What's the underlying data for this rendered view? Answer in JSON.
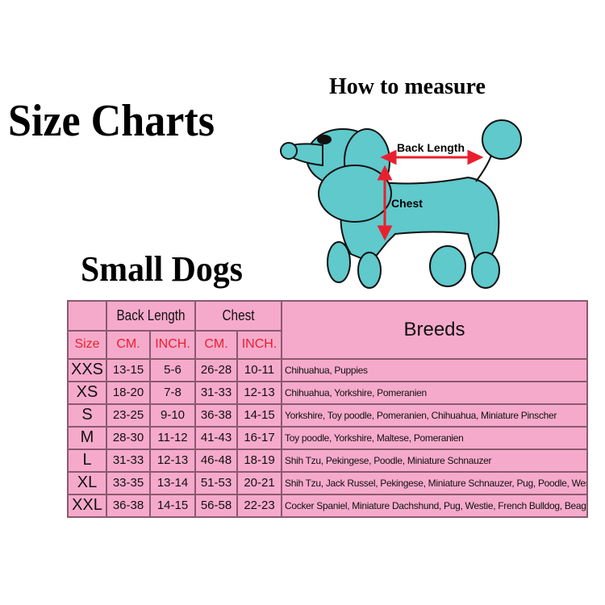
{
  "title": "Size Charts",
  "subtitle": "Small Dogs",
  "measure": {
    "title": "How to measure",
    "back_length": "Back Length",
    "chest": "Chest"
  },
  "colors": {
    "table_bg": "#f6aacb",
    "unit_text": "#e8202e",
    "dog": "#5fc9cc",
    "arrow": "#e8202e"
  },
  "table": {
    "group_back": "Back Length",
    "group_chest": "Chest",
    "breeds": "Breeds",
    "size": "Size",
    "cm": "CM.",
    "inch": "INCH.",
    "rows": [
      {
        "size": "XXS",
        "back_cm": "13-15",
        "back_in": "5-6",
        "chest_cm": "26-28",
        "chest_in": "10-11",
        "breeds": "Chihuahua, Puppies"
      },
      {
        "size": "XS",
        "back_cm": "18-20",
        "back_in": "7-8",
        "chest_cm": "31-33",
        "chest_in": "12-13",
        "breeds": "Chihuahua, Yorkshire, Pomeranien"
      },
      {
        "size": "S",
        "back_cm": "23-25",
        "back_in": "9-10",
        "chest_cm": "36-38",
        "chest_in": "14-15",
        "breeds": "Yorkshire, Toy poodle, Pomeranien, Chihuahua, Miniature Pinscher"
      },
      {
        "size": "M",
        "back_cm": "28-30",
        "back_in": "11-12",
        "chest_cm": "41-43",
        "chest_in": "16-17",
        "breeds": "Toy poodle, Yorkshire, Maltese, Pomeranien"
      },
      {
        "size": "L",
        "back_cm": "31-33",
        "back_in": "12-13",
        "chest_cm": "46-48",
        "chest_in": "18-19",
        "breeds": "Shih Tzu, Pekingese, Poodle, Miniature Schnauzer"
      },
      {
        "size": "XL",
        "back_cm": "33-35",
        "back_in": "13-14",
        "chest_cm": "51-53",
        "chest_in": "20-21",
        "breeds": "Shih Tzu, Jack Russel, Pekingese, Miniature Schnauzer, Pug, Poodle, Westie"
      },
      {
        "size": "XXL",
        "back_cm": "36-38",
        "back_in": "14-15",
        "chest_cm": "56-58",
        "chest_in": "22-23",
        "breeds": "Cocker Spaniel, Miniature Dachshund, Pug, Westie, French Bulldog, Beagle"
      }
    ]
  }
}
